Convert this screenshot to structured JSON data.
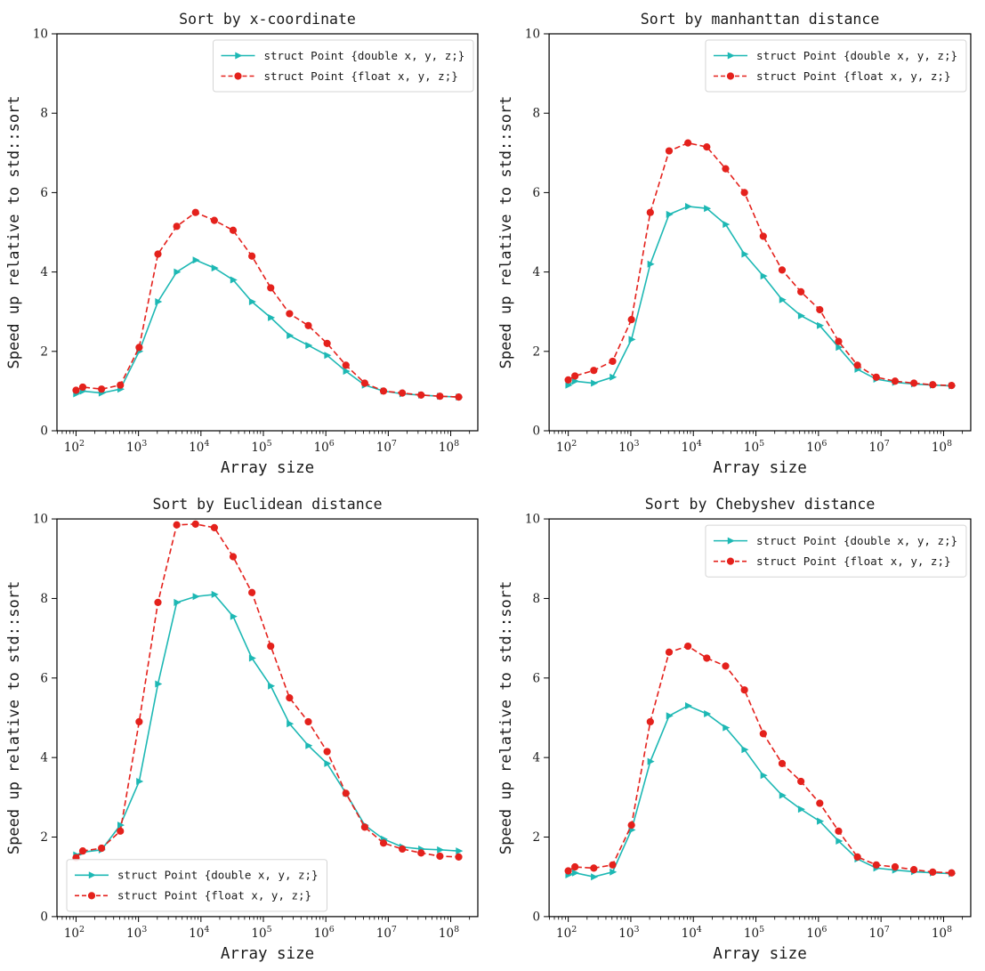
{
  "figure": {
    "background": "#ffffff",
    "axis_color": "#000000",
    "tick_label_color": "#1a1a1a",
    "legend_border_color": "#d5d5d5",
    "legend_background": "#ffffff"
  },
  "chart_data": [
    {
      "type": "line",
      "title": "Sort by x-coordinate",
      "xlabel": "Array size",
      "ylabel": "Speed up relative to std::sort",
      "xscale": "log",
      "xlim_log": [
        1.694,
        8.434
      ],
      "ylim": [
        0,
        10
      ],
      "yticks": [
        0,
        2,
        4,
        6,
        8,
        10
      ],
      "xticks_decades": [
        2,
        3,
        4,
        5,
        6,
        7,
        8
      ],
      "grid": false,
      "legend_pos": "upper-right",
      "x": [
        100,
        128,
        256,
        512,
        1024,
        2048,
        4096,
        8192,
        16384,
        32768,
        65536,
        131072,
        262144,
        524288,
        1048576,
        2097152,
        4194304,
        8388608,
        16777216,
        33554432,
        67108864,
        134217728
      ],
      "series": [
        {
          "name": "struct Point {double x, y, z;}",
          "color": "#1db8b4",
          "linestyle": "solid",
          "marker": "triangle-right",
          "values": [
            0.93,
            1.0,
            0.95,
            1.05,
            2.0,
            3.25,
            4.0,
            4.3,
            4.1,
            3.8,
            3.25,
            2.85,
            2.4,
            2.15,
            1.9,
            1.5,
            1.15,
            1.0,
            0.93,
            0.9,
            0.87,
            0.85
          ]
        },
        {
          "name": "struct Point {float x, y, z;}",
          "color": "#e4211c",
          "linestyle": "dashed",
          "marker": "circle",
          "values": [
            1.02,
            1.1,
            1.05,
            1.15,
            2.1,
            4.45,
            5.15,
            5.5,
            5.3,
            5.05,
            4.4,
            3.6,
            2.95,
            2.65,
            2.2,
            1.65,
            1.2,
            1.0,
            0.95,
            0.9,
            0.87,
            0.85
          ]
        }
      ]
    },
    {
      "type": "line",
      "title": "Sort by manhanttan distance",
      "xlabel": "Array size",
      "ylabel": "Speed up relative to std::sort",
      "xscale": "log",
      "xlim_log": [
        1.694,
        8.434
      ],
      "ylim": [
        0,
        10
      ],
      "yticks": [
        0,
        2,
        4,
        6,
        8,
        10
      ],
      "xticks_decades": [
        2,
        3,
        4,
        5,
        6,
        7,
        8
      ],
      "grid": false,
      "legend_pos": "upper-right",
      "x": [
        100,
        128,
        256,
        512,
        1024,
        2048,
        4096,
        8192,
        16384,
        32768,
        65536,
        131072,
        262144,
        524288,
        1048576,
        2097152,
        4194304,
        8388608,
        16777216,
        33554432,
        67108864,
        134217728
      ],
      "series": [
        {
          "name": "struct Point {double x, y, z;}",
          "color": "#1db8b4",
          "linestyle": "solid",
          "marker": "triangle-right",
          "values": [
            1.15,
            1.25,
            1.2,
            1.35,
            2.3,
            4.2,
            5.45,
            5.65,
            5.6,
            5.2,
            4.45,
            3.9,
            3.3,
            2.9,
            2.65,
            2.1,
            1.55,
            1.3,
            1.22,
            1.18,
            1.15,
            1.13
          ]
        },
        {
          "name": "struct Point {float x, y, z;}",
          "color": "#e4211c",
          "linestyle": "dashed",
          "marker": "circle",
          "values": [
            1.28,
            1.38,
            1.52,
            1.75,
            2.8,
            5.5,
            7.05,
            7.25,
            7.15,
            6.6,
            6.0,
            4.9,
            4.05,
            3.5,
            3.05,
            2.25,
            1.65,
            1.35,
            1.25,
            1.2,
            1.16,
            1.14
          ]
        }
      ]
    },
    {
      "type": "line",
      "title": "Sort by Euclidean distance",
      "xlabel": "Array size",
      "ylabel": "Speed up relative to std::sort",
      "xscale": "log",
      "xlim_log": [
        1.694,
        8.434
      ],
      "ylim": [
        0,
        10
      ],
      "yticks": [
        0,
        2,
        4,
        6,
        8,
        10
      ],
      "xticks_decades": [
        2,
        3,
        4,
        5,
        6,
        7,
        8
      ],
      "grid": false,
      "legend_pos": "lower-left",
      "x": [
        100,
        128,
        256,
        512,
        1024,
        2048,
        4096,
        8192,
        16384,
        32768,
        65536,
        131072,
        262144,
        524288,
        1048576,
        2097152,
        4194304,
        8388608,
        16777216,
        33554432,
        67108864,
        134217728
      ],
      "series": [
        {
          "name": "struct Point {double x, y, z;}",
          "color": "#1db8b4",
          "linestyle": "solid",
          "marker": "triangle-right",
          "values": [
            1.55,
            1.62,
            1.68,
            2.3,
            3.4,
            5.85,
            7.9,
            8.05,
            8.1,
            7.55,
            6.5,
            5.8,
            4.85,
            4.3,
            3.85,
            3.1,
            2.3,
            1.95,
            1.75,
            1.7,
            1.68,
            1.65
          ]
        },
        {
          "name": "struct Point {float x, y, z;}",
          "color": "#e4211c",
          "linestyle": "dashed",
          "marker": "circle",
          "values": [
            1.48,
            1.65,
            1.72,
            2.15,
            4.9,
            7.9,
            9.85,
            9.87,
            9.78,
            9.05,
            8.15,
            6.8,
            5.5,
            4.9,
            4.15,
            3.1,
            2.25,
            1.85,
            1.7,
            1.6,
            1.52,
            1.5
          ]
        }
      ]
    },
    {
      "type": "line",
      "title": "Sort by Chebyshev distance",
      "xlabel": "Array size",
      "ylabel": "Speed up relative to std::sort",
      "xscale": "log",
      "xlim_log": [
        1.694,
        8.434
      ],
      "ylim": [
        0,
        10
      ],
      "yticks": [
        0,
        2,
        4,
        6,
        8,
        10
      ],
      "xticks_decades": [
        2,
        3,
        4,
        5,
        6,
        7,
        8
      ],
      "grid": false,
      "legend_pos": "upper-right",
      "x": [
        100,
        128,
        256,
        512,
        1024,
        2048,
        4096,
        8192,
        16384,
        32768,
        65536,
        131072,
        262144,
        524288,
        1048576,
        2097152,
        4194304,
        8388608,
        16777216,
        33554432,
        67108864,
        134217728
      ],
      "series": [
        {
          "name": "struct Point {double x, y, z;}",
          "color": "#1db8b4",
          "linestyle": "solid",
          "marker": "triangle-right",
          "values": [
            1.05,
            1.1,
            1.0,
            1.12,
            2.18,
            3.9,
            5.05,
            5.3,
            5.1,
            4.75,
            4.2,
            3.55,
            3.05,
            2.7,
            2.4,
            1.9,
            1.45,
            1.22,
            1.17,
            1.13,
            1.1,
            1.08
          ]
        },
        {
          "name": "struct Point {float x, y, z;}",
          "color": "#e4211c",
          "linestyle": "dashed",
          "marker": "circle",
          "values": [
            1.15,
            1.25,
            1.22,
            1.3,
            2.3,
            4.9,
            6.65,
            6.8,
            6.5,
            6.3,
            5.7,
            4.6,
            3.85,
            3.4,
            2.85,
            2.15,
            1.5,
            1.3,
            1.25,
            1.18,
            1.12,
            1.1
          ]
        }
      ]
    }
  ]
}
